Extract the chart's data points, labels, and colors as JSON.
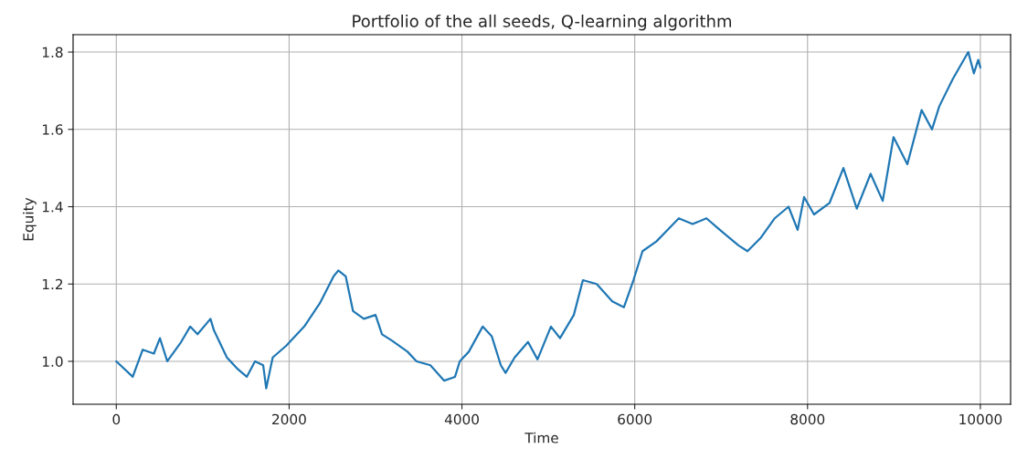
{
  "chart_data": {
    "type": "line",
    "title": "Portfolio of the all seeds, Q-learning algorithm",
    "xlabel": "Time",
    "ylabel": "Equity",
    "series": [
      {
        "color": "#1f77b4",
        "x": [
          0,
          190,
          305,
          435,
          505,
          590,
          750,
          855,
          940,
          1090,
          1130,
          1280,
          1405,
          1510,
          1605,
          1700,
          1735,
          1810,
          1965,
          2175,
          2355,
          2515,
          2570,
          2655,
          2740,
          2865,
          3000,
          3075,
          3180,
          3370,
          3475,
          3635,
          3795,
          3920,
          3975,
          4080,
          4240,
          4345,
          4450,
          4505,
          4610,
          4765,
          4875,
          5030,
          5135,
          5295,
          5400,
          5560,
          5740,
          5875,
          5985,
          6090,
          6250,
          6510,
          6670,
          6830,
          6985,
          7200,
          7305,
          7460,
          7620,
          7780,
          7885,
          7960,
          8075,
          8255,
          8415,
          8570,
          8730,
          8870,
          8995,
          9155,
          9320,
          9440,
          9525,
          9680,
          9860,
          9925,
          9975,
          10000
        ],
        "values": [
          1.0,
          0.96,
          1.03,
          1.02,
          1.06,
          1.0,
          1.05,
          1.09,
          1.07,
          1.11,
          1.08,
          1.01,
          0.98,
          0.96,
          1.0,
          0.99,
          0.93,
          1.01,
          1.04,
          1.09,
          1.15,
          1.22,
          1.235,
          1.22,
          1.13,
          1.11,
          1.12,
          1.07,
          1.055,
          1.025,
          1.0,
          0.99,
          0.95,
          0.96,
          1.0,
          1.025,
          1.09,
          1.065,
          0.99,
          0.97,
          1.01,
          1.05,
          1.005,
          1.09,
          1.06,
          1.12,
          1.21,
          1.2,
          1.155,
          1.14,
          1.21,
          1.285,
          1.31,
          1.37,
          1.355,
          1.37,
          1.34,
          1.3,
          1.285,
          1.32,
          1.37,
          1.4,
          1.34,
          1.425,
          1.38,
          1.41,
          1.5,
          1.395,
          1.485,
          1.415,
          1.58,
          1.51,
          1.65,
          1.6,
          1.66,
          1.73,
          1.8,
          1.745,
          1.78,
          1.76
        ]
      }
    ],
    "xlim": [
      -500,
      10350
    ],
    "ylim": [
      0.889,
      1.845
    ],
    "xticks": [
      0,
      2000,
      4000,
      6000,
      8000,
      10000
    ],
    "yticks": [
      {
        "value": 1.0,
        "label": "1.0"
      },
      {
        "value": 1.2,
        "label": "1.2"
      },
      {
        "value": 1.4,
        "label": "1.4"
      },
      {
        "value": 1.6,
        "label": "1.6"
      },
      {
        "value": 1.8,
        "label": "1.8"
      }
    ],
    "grid": true,
    "line_style": "solid",
    "marker": "none"
  }
}
